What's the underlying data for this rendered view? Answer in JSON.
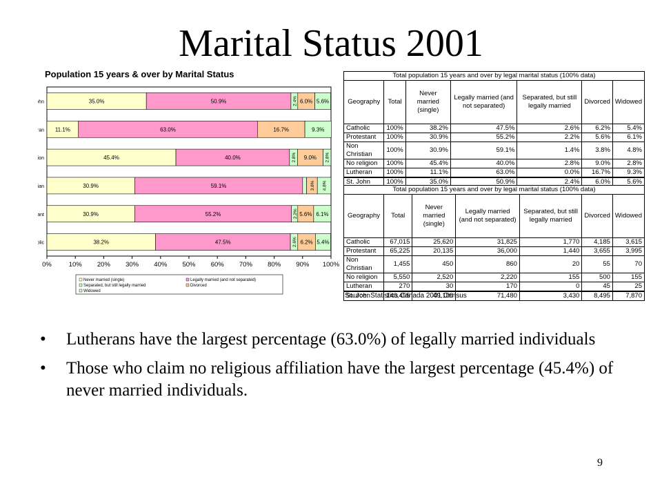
{
  "slide": {
    "title": "Marital Status 2001",
    "bullets": [
      "Lutherans have the largest percentage (63.0%) of legally married individuals",
      "Those who claim no religious affiliation have the largest percentage (45.4%) of never married individuals."
    ],
    "bullet_glyph": "•",
    "page_number": "9"
  },
  "chart_data": {
    "type": "bar",
    "orientation": "horizontal",
    "stacked": "percent",
    "title": "Population 15 years & over by Marital Status",
    "categories": [
      "St. John",
      "Lutheran",
      "No religion",
      "Non Christian",
      "Protestant",
      "Catholic"
    ],
    "series": [
      {
        "name": "Never married (single)",
        "color": "#FFFFCC",
        "values": [
          35.0,
          11.1,
          45.4,
          30.9,
          30.9,
          38.2
        ]
      },
      {
        "name": "Legally married (and not separated)",
        "color": "#FF99CC",
        "values": [
          50.9,
          63.0,
          40.0,
          59.1,
          55.2,
          47.5
        ]
      },
      {
        "name": "Separated, but still legally married",
        "color": "#CCFFCC",
        "values": [
          2.4,
          0.0,
          2.8,
          1.4,
          2.2,
          2.6
        ]
      },
      {
        "name": "Divorced",
        "color": "#FFCC99",
        "values": [
          6.0,
          16.7,
          9.0,
          3.8,
          5.6,
          6.2
        ]
      },
      {
        "name": "Widowed",
        "color": "#CCFFCC",
        "values": [
          5.6,
          9.3,
          2.8,
          4.8,
          6.1,
          5.4
        ]
      }
    ],
    "data_labels": [
      [
        "35.0%",
        "50.9%",
        "2.4%",
        "6.0%",
        "5.6%"
      ],
      [
        "11.1%",
        "63.0%",
        "",
        "16.7%",
        "9.3%"
      ],
      [
        "45.4%",
        "40.0%",
        "2.8%",
        "9.0%",
        "2.8%"
      ],
      [
        "30.9%",
        "59.1%",
        "",
        "3.8%",
        "4.8%"
      ],
      [
        "30.9%",
        "55.2%",
        "2.2%",
        "5.6%",
        "6.1%"
      ],
      [
        "38.2%",
        "47.5%",
        "2.6%",
        "6.2%",
        "5.4%"
      ]
    ],
    "x_ticks": [
      "0%",
      "10%",
      "20%",
      "30%",
      "40%",
      "50%",
      "60%",
      "70%",
      "80%",
      "90%",
      "100%"
    ],
    "xlim": [
      0,
      100
    ],
    "legend": [
      {
        "label": "Never married (single)",
        "color": "#FFFFCC"
      },
      {
        "label": "Legally married (and not separated)",
        "color": "#FF99CC"
      },
      {
        "label": "Separated, but still legally married",
        "color": "#CCFFCC"
      },
      {
        "label": "Divorced",
        "color": "#FFCC99"
      },
      {
        "label": "Widowed",
        "color": "#CCFFCC"
      }
    ],
    "legend_position": "bottom",
    "grid": false
  },
  "tables": {
    "caption": "Total population 15 years and over by legal marital status (100% data)",
    "headers": [
      "Geography",
      "Total",
      "Never married (single)",
      "Legally married (and not separated)",
      "Separated, but still legally married",
      "Divorced",
      "Widowed"
    ],
    "percent_rows": [
      [
        "Catholic",
        "100%",
        "38.2%",
        "47.5%",
        "2.6%",
        "6.2%",
        "5.4%"
      ],
      [
        "Protestant",
        "100%",
        "30.9%",
        "55.2%",
        "2.2%",
        "5.6%",
        "6.1%"
      ],
      [
        "Non Christian",
        "100%",
        "30.9%",
        "59.1%",
        "1.4%",
        "3.8%",
        "4.8%"
      ],
      [
        "No religion",
        "100%",
        "45.4%",
        "40.0%",
        "2.8%",
        "9.0%",
        "2.8%"
      ],
      [
        "Lutheran",
        "100%",
        "11.1%",
        "63.0%",
        "0.0%",
        "16.7%",
        "9.3%"
      ],
      [
        "St. John",
        "100%",
        "35.0%",
        "50.9%",
        "2.4%",
        "6.0%",
        "5.6%"
      ]
    ],
    "count_rows": [
      [
        "Catholic",
        "67,015",
        "25,620",
        "31,825",
        "1,770",
        "4,185",
        "3,615"
      ],
      [
        "Protestant",
        "65,225",
        "20,135",
        "36,000",
        "1,440",
        "3,655",
        "3,995"
      ],
      [
        "Non Christian",
        "1,455",
        "450",
        "860",
        "20",
        "55",
        "70"
      ],
      [
        "No religion",
        "5,550",
        "2,520",
        "2,220",
        "155",
        "500",
        "155"
      ],
      [
        "Lutheran",
        "270",
        "30",
        "170",
        "0",
        "45",
        "25"
      ],
      [
        "St. John",
        "140,455",
        "49,180",
        "71,480",
        "3,430",
        "8,495",
        "7,870"
      ]
    ],
    "source": "Source: Statistics Canada 2001 Census"
  }
}
